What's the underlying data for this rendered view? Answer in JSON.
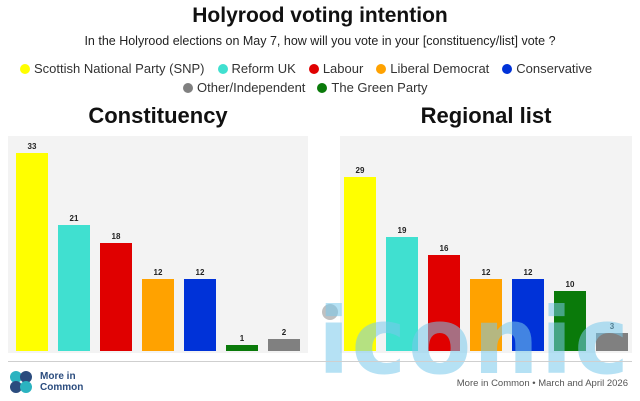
{
  "header": {
    "title": "Holyrood voting intention",
    "subtitle": "In the Holyrood elections on May 7, how will you vote in your [constituency/list] vote ?"
  },
  "legend": [
    {
      "label": "Scottish National Party (SNP)",
      "color": "#ffff00"
    },
    {
      "label": "Reform UK",
      "color": "#40e0d0"
    },
    {
      "label": "Labour",
      "color": "#e00000"
    },
    {
      "label": "Liberal Democrat",
      "color": "#ffa200"
    },
    {
      "label": "Conservative",
      "color": "#0032d8"
    },
    {
      "label": "Other/Independent",
      "color": "#808080"
    },
    {
      "label": "The Green Party",
      "color": "#0a7a0a"
    }
  ],
  "chart_data": [
    {
      "type": "bar",
      "title": "Constituency",
      "categories": [
        "Scottish National Party (SNP)",
        "Reform UK",
        "Labour",
        "Liberal Democrat",
        "Conservative",
        "The Green Party",
        "Other/Independent"
      ],
      "values": [
        33,
        21,
        18,
        12,
        12,
        1,
        2
      ],
      "colors": [
        "#ffff00",
        "#40e0d0",
        "#e00000",
        "#ffa200",
        "#0032d8",
        "#0a7a0a",
        "#808080"
      ],
      "ylim": [
        0,
        35
      ],
      "grid": false
    },
    {
      "type": "bar",
      "title": "Regional list",
      "categories": [
        "Scottish National Party (SNP)",
        "Reform UK",
        "Labour",
        "Liberal Democrat",
        "Conservative",
        "The Green Party",
        "Other/Independent"
      ],
      "values": [
        29,
        19,
        16,
        12,
        12,
        10,
        3
      ],
      "colors": [
        "#ffff00",
        "#40e0d0",
        "#e00000",
        "#ffa200",
        "#0032d8",
        "#0a7a0a",
        "#808080"
      ],
      "ylim": [
        0,
        35
      ],
      "grid": false
    }
  ],
  "footer": {
    "logo_text": "More in Common",
    "source": "More in Common • March and April 2026"
  },
  "watermark": {
    "text": "iconic"
  }
}
